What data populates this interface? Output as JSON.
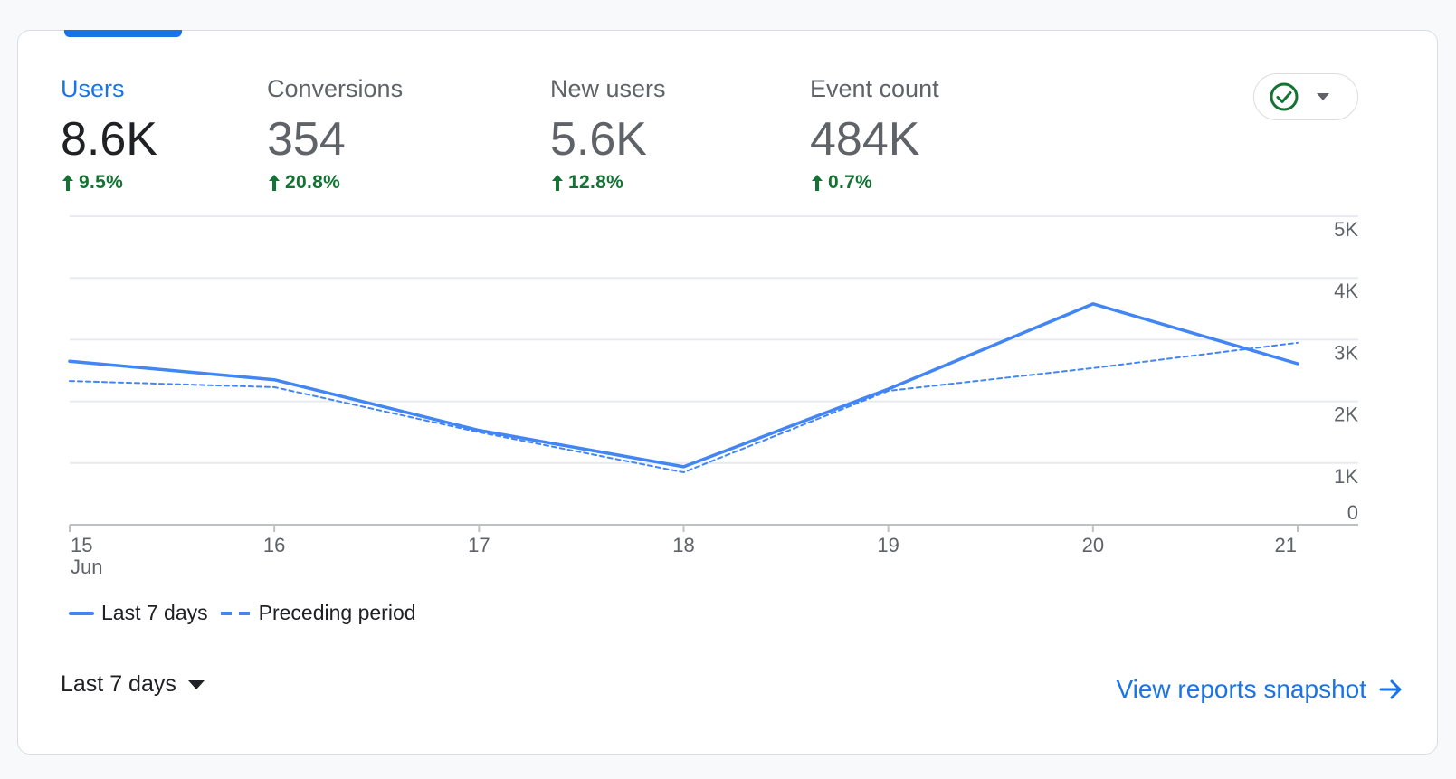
{
  "metrics": [
    {
      "label": "Users",
      "value": "8.6K",
      "change": "9.5%",
      "active": true
    },
    {
      "label": "Conversions",
      "value": "354",
      "change": "20.8%",
      "active": false
    },
    {
      "label": "New users",
      "value": "5.6K",
      "change": "12.8%",
      "active": false
    },
    {
      "label": "Event count",
      "value": "484K",
      "change": "0.7%",
      "active": false
    }
  ],
  "legend": {
    "current": "Last 7 days",
    "previous": "Preceding period"
  },
  "date_range": "Last 7 days",
  "snapshot_link": "View reports snapshot",
  "colors": {
    "accent": "#1a73e8",
    "positive": "#137333",
    "line": "#4285f4"
  },
  "chart_data": {
    "type": "line",
    "x": [
      "15",
      "16",
      "17",
      "18",
      "19",
      "20",
      "21"
    ],
    "x_sublabel": "Jun",
    "series": [
      {
        "name": "Last 7 days",
        "values": [
          2650,
          2350,
          1530,
          940,
          2200,
          3580,
          2610
        ]
      },
      {
        "name": "Preceding period",
        "values": [
          2330,
          2230,
          1500,
          850,
          2170,
          2540,
          2950
        ]
      }
    ],
    "y_ticks": [
      "5K",
      "4K",
      "3K",
      "2K",
      "1K",
      "0"
    ],
    "ylim": [
      0,
      5000
    ],
    "grid": true
  }
}
